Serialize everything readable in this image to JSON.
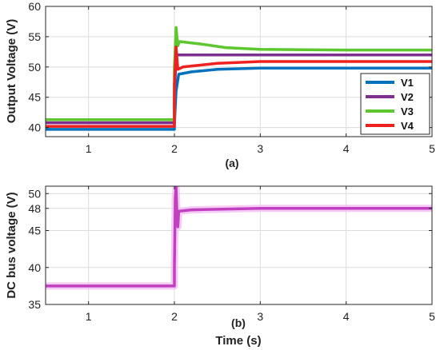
{
  "chart_data": [
    {
      "id": "a",
      "type": "line",
      "panel_label": "(a)",
      "xlabel": "",
      "ylabel": "Output Voltage (V)",
      "xlim": [
        0.5,
        5
      ],
      "ylim": [
        38.5,
        60
      ],
      "xticks": [
        1,
        2,
        3,
        4,
        5
      ],
      "yticks": [
        40,
        45,
        50,
        55,
        60
      ],
      "grid": true,
      "legend_position": "right",
      "series": [
        {
          "name": "V1",
          "color": "#0072BD",
          "points": [
            [
              0.5,
              39.7
            ],
            [
              2.0,
              39.7
            ],
            [
              2.0,
              40.5
            ],
            [
              2.02,
              46.0
            ],
            [
              2.05,
              48.8
            ],
            [
              2.2,
              49.2
            ],
            [
              2.5,
              49.6
            ],
            [
              3.0,
              49.8
            ],
            [
              4.0,
              49.8
            ],
            [
              5.0,
              49.8
            ]
          ]
        },
        {
          "name": "V2",
          "color": "#7E2F8E",
          "points": [
            [
              0.5,
              40.8
            ],
            [
              2.0,
              40.8
            ],
            [
              2.0,
              45.0
            ],
            [
              2.02,
              52.0
            ],
            [
              2.05,
              52.0
            ],
            [
              3.0,
              52.0
            ],
            [
              4.0,
              52.0
            ],
            [
              5.0,
              52.0
            ]
          ]
        },
        {
          "name": "V3",
          "color": "#5CC72E",
          "points": [
            [
              0.5,
              41.3
            ],
            [
              2.0,
              41.3
            ],
            [
              2.0,
              50.0
            ],
            [
              2.02,
              56.5
            ],
            [
              2.04,
              53.5
            ],
            [
              2.06,
              54.2
            ],
            [
              2.3,
              53.8
            ],
            [
              2.6,
              53.2
            ],
            [
              3.0,
              52.9
            ],
            [
              4.0,
              52.8
            ],
            [
              5.0,
              52.8
            ]
          ]
        },
        {
          "name": "V4",
          "color": "#EE2020",
          "points": [
            [
              0.5,
              40.2
            ],
            [
              2.0,
              40.2
            ],
            [
              2.0,
              47.0
            ],
            [
              2.02,
              53.3
            ],
            [
              2.04,
              49.6
            ],
            [
              2.1,
              50.0
            ],
            [
              2.5,
              50.6
            ],
            [
              3.0,
              50.9
            ],
            [
              4.0,
              50.9
            ],
            [
              5.0,
              50.9
            ]
          ]
        }
      ]
    },
    {
      "id": "b",
      "type": "line",
      "panel_label": "(b)",
      "xlabel": "Time (s)",
      "ylabel": "DC bus voltage (V)",
      "xlim": [
        0.5,
        5
      ],
      "ylim": [
        35,
        51
      ],
      "xticks": [
        1,
        2,
        3,
        4,
        5
      ],
      "yticks": [
        35,
        40,
        45,
        48,
        50
      ],
      "grid": true,
      "series": [
        {
          "name": "",
          "color": "#C040C0",
          "points": [
            [
              0.5,
              37.5
            ],
            [
              2.0,
              37.5
            ],
            [
              2.0,
              40.0
            ],
            [
              2.01,
              49.5
            ],
            [
              2.02,
              51.0
            ],
            [
              2.03,
              47.0
            ],
            [
              2.04,
              45.5
            ],
            [
              2.05,
              47.6
            ],
            [
              2.2,
              47.8
            ],
            [
              3.0,
              48.0
            ],
            [
              4.0,
              48.0
            ],
            [
              5.0,
              48.0
            ]
          ]
        }
      ]
    }
  ]
}
